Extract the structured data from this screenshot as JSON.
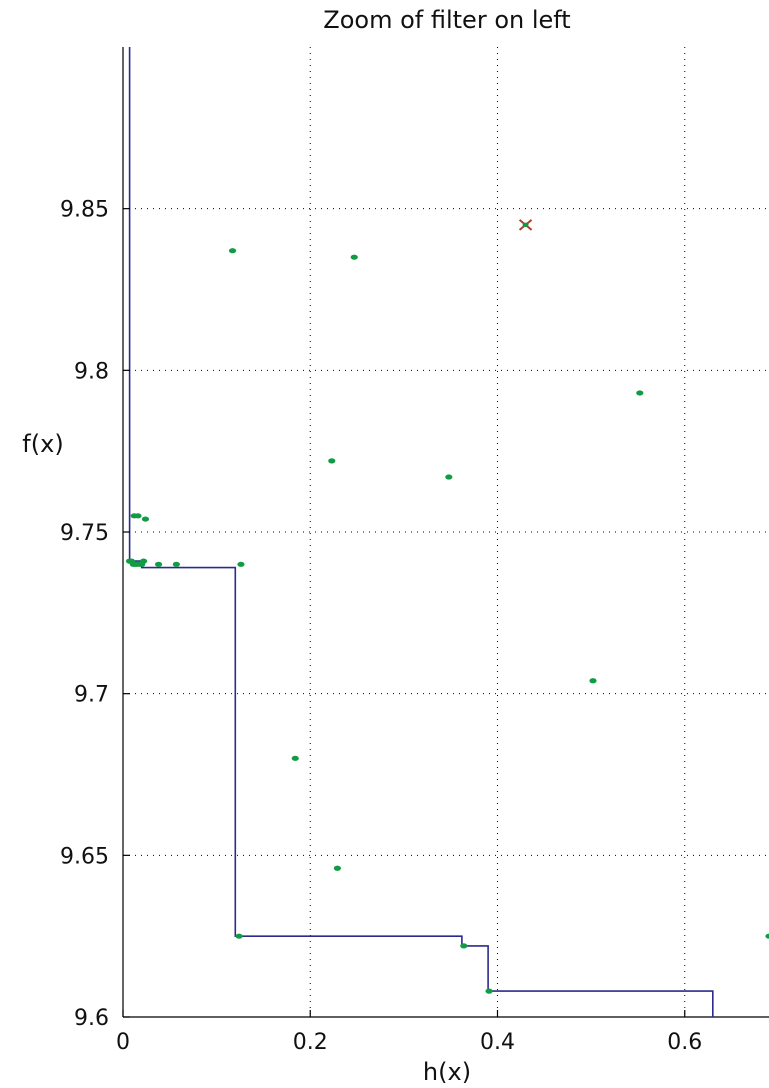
{
  "chart_data": {
    "type": "scatter",
    "title": "Zoom of filter on left",
    "xlabel": "h(x)",
    "ylabel": "f(x)",
    "xlim": [
      0,
      0.69
    ],
    "ylim": [
      9.6,
      9.9
    ],
    "xticks": [
      0,
      0.2,
      0.4,
      0.6
    ],
    "xtick_labels": [
      "0",
      "0.2",
      "0.4",
      "0.6"
    ],
    "yticks": [
      9.6,
      9.65,
      9.7,
      9.75,
      9.8,
      9.85
    ],
    "ytick_labels": [
      "9.6",
      "9.65",
      "9.7",
      "9.75",
      "9.8",
      "9.85"
    ],
    "grid": true,
    "filter_line": {
      "color": "#2b2b8c",
      "points": [
        [
          0.007,
          9.9
        ],
        [
          0.007,
          9.741
        ],
        [
          0.02,
          9.741
        ],
        [
          0.02,
          9.739
        ],
        [
          0.12,
          9.739
        ],
        [
          0.12,
          9.625
        ],
        [
          0.362,
          9.625
        ],
        [
          0.362,
          9.622
        ],
        [
          0.39,
          9.622
        ],
        [
          0.39,
          9.608
        ],
        [
          0.63,
          9.608
        ],
        [
          0.63,
          9.6
        ]
      ]
    },
    "points_color": "#109c44",
    "points": [
      [
        0.117,
        9.837
      ],
      [
        0.247,
        9.835
      ],
      [
        0.552,
        9.793
      ],
      [
        0.223,
        9.772
      ],
      [
        0.348,
        9.767
      ],
      [
        0.012,
        9.755
      ],
      [
        0.016,
        9.755
      ],
      [
        0.024,
        9.754
      ],
      [
        0.007,
        9.741
      ],
      [
        0.009,
        9.741
      ],
      [
        0.011,
        9.74
      ],
      [
        0.013,
        9.74
      ],
      [
        0.015,
        9.74
      ],
      [
        0.018,
        9.74
      ],
      [
        0.022,
        9.741
      ],
      [
        0.02,
        9.74
      ],
      [
        0.038,
        9.74
      ],
      [
        0.057,
        9.74
      ],
      [
        0.126,
        9.74
      ],
      [
        0.502,
        9.704
      ],
      [
        0.184,
        9.68
      ],
      [
        0.229,
        9.646
      ],
      [
        0.124,
        9.625
      ],
      [
        0.364,
        9.622
      ],
      [
        0.391,
        9.608
      ],
      [
        0.69,
        9.625
      ]
    ],
    "marker_color": "#b03a2e",
    "marker": [
      0.43,
      9.845
    ]
  }
}
